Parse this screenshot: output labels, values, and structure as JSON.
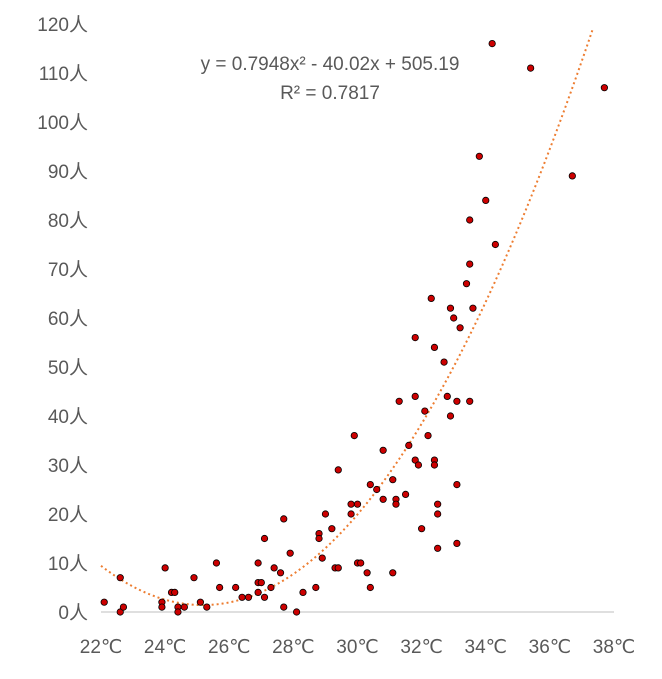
{
  "chart_data": {
    "type": "scatter",
    "xlabel": "",
    "ylabel": "",
    "xlim": [
      22,
      38
    ],
    "ylim": [
      0,
      120
    ],
    "x_ticks": [
      "22℃",
      "24℃",
      "26℃",
      "28℃",
      "30℃",
      "32℃",
      "34℃",
      "36℃",
      "38℃"
    ],
    "y_ticks": [
      "0人",
      "10人",
      "20人",
      "30人",
      "40人",
      "50人",
      "60人",
      "70人",
      "80人",
      "90人",
      "100人",
      "110人",
      "120人"
    ],
    "grid": false,
    "legend": "none",
    "annotation": {
      "equation": "y = 0.7948x² - 40.02x + 505.19",
      "r_squared": "R² = 0.7817"
    },
    "trendline": {
      "type": "polynomial",
      "order": 2,
      "coefficients": [
        0.7948,
        -40.02,
        505.19
      ],
      "style": "dotted",
      "color": "#ed7d31"
    },
    "marker_fill": "#cc0000",
    "marker_stroke": "#000000",
    "series": [
      {
        "points": [
          [
            22.1,
            2
          ],
          [
            22.6,
            7
          ],
          [
            22.6,
            0
          ],
          [
            22.7,
            1
          ],
          [
            23.9,
            2
          ],
          [
            23.9,
            1
          ],
          [
            24.0,
            9
          ],
          [
            24.2,
            4
          ],
          [
            24.3,
            4
          ],
          [
            24.4,
            1
          ],
          [
            24.4,
            0
          ],
          [
            24.6,
            1
          ],
          [
            24.9,
            7
          ],
          [
            25.1,
            2
          ],
          [
            25.3,
            1
          ],
          [
            25.6,
            10
          ],
          [
            25.7,
            5
          ],
          [
            26.2,
            5
          ],
          [
            26.4,
            3
          ],
          [
            26.6,
            3
          ],
          [
            26.9,
            4
          ],
          [
            26.9,
            6
          ],
          [
            26.9,
            10
          ],
          [
            27.0,
            6
          ],
          [
            27.1,
            15
          ],
          [
            27.1,
            3
          ],
          [
            27.3,
            5
          ],
          [
            27.4,
            9
          ],
          [
            27.6,
            8
          ],
          [
            27.7,
            19
          ],
          [
            27.7,
            1
          ],
          [
            27.9,
            12
          ],
          [
            28.1,
            0
          ],
          [
            28.3,
            4
          ],
          [
            28.7,
            5
          ],
          [
            28.8,
            16
          ],
          [
            28.8,
            15
          ],
          [
            28.9,
            11
          ],
          [
            29.0,
            20
          ],
          [
            29.2,
            17
          ],
          [
            29.3,
            9
          ],
          [
            29.4,
            29
          ],
          [
            29.4,
            9
          ],
          [
            29.8,
            22
          ],
          [
            29.8,
            20
          ],
          [
            29.9,
            36
          ],
          [
            30.0,
            10
          ],
          [
            30.0,
            22
          ],
          [
            30.1,
            10
          ],
          [
            30.3,
            8
          ],
          [
            30.4,
            26
          ],
          [
            30.4,
            5
          ],
          [
            30.6,
            25
          ],
          [
            30.8,
            33
          ],
          [
            30.8,
            23
          ],
          [
            31.1,
            27
          ],
          [
            31.1,
            8
          ],
          [
            31.2,
            23
          ],
          [
            31.2,
            22
          ],
          [
            31.3,
            43
          ],
          [
            31.5,
            24
          ],
          [
            31.6,
            34
          ],
          [
            31.8,
            56
          ],
          [
            31.8,
            44
          ],
          [
            31.8,
            31
          ],
          [
            31.9,
            30
          ],
          [
            32.0,
            17
          ],
          [
            32.1,
            41
          ],
          [
            32.2,
            36
          ],
          [
            32.3,
            64
          ],
          [
            32.4,
            54
          ],
          [
            32.4,
            31
          ],
          [
            32.4,
            30
          ],
          [
            32.5,
            22
          ],
          [
            32.5,
            20
          ],
          [
            32.5,
            13
          ],
          [
            32.7,
            51
          ],
          [
            32.8,
            44
          ],
          [
            32.9,
            62
          ],
          [
            32.9,
            40
          ],
          [
            33.0,
            60
          ],
          [
            33.1,
            43
          ],
          [
            33.1,
            26
          ],
          [
            33.1,
            14
          ],
          [
            33.2,
            58
          ],
          [
            33.4,
            67
          ],
          [
            33.5,
            80
          ],
          [
            33.5,
            71
          ],
          [
            33.5,
            43
          ],
          [
            33.6,
            62
          ],
          [
            33.8,
            93
          ],
          [
            34.0,
            84
          ],
          [
            34.2,
            116
          ],
          [
            34.3,
            75
          ],
          [
            35.4,
            111
          ],
          [
            36.7,
            89
          ],
          [
            37.7,
            107
          ]
        ]
      }
    ]
  }
}
